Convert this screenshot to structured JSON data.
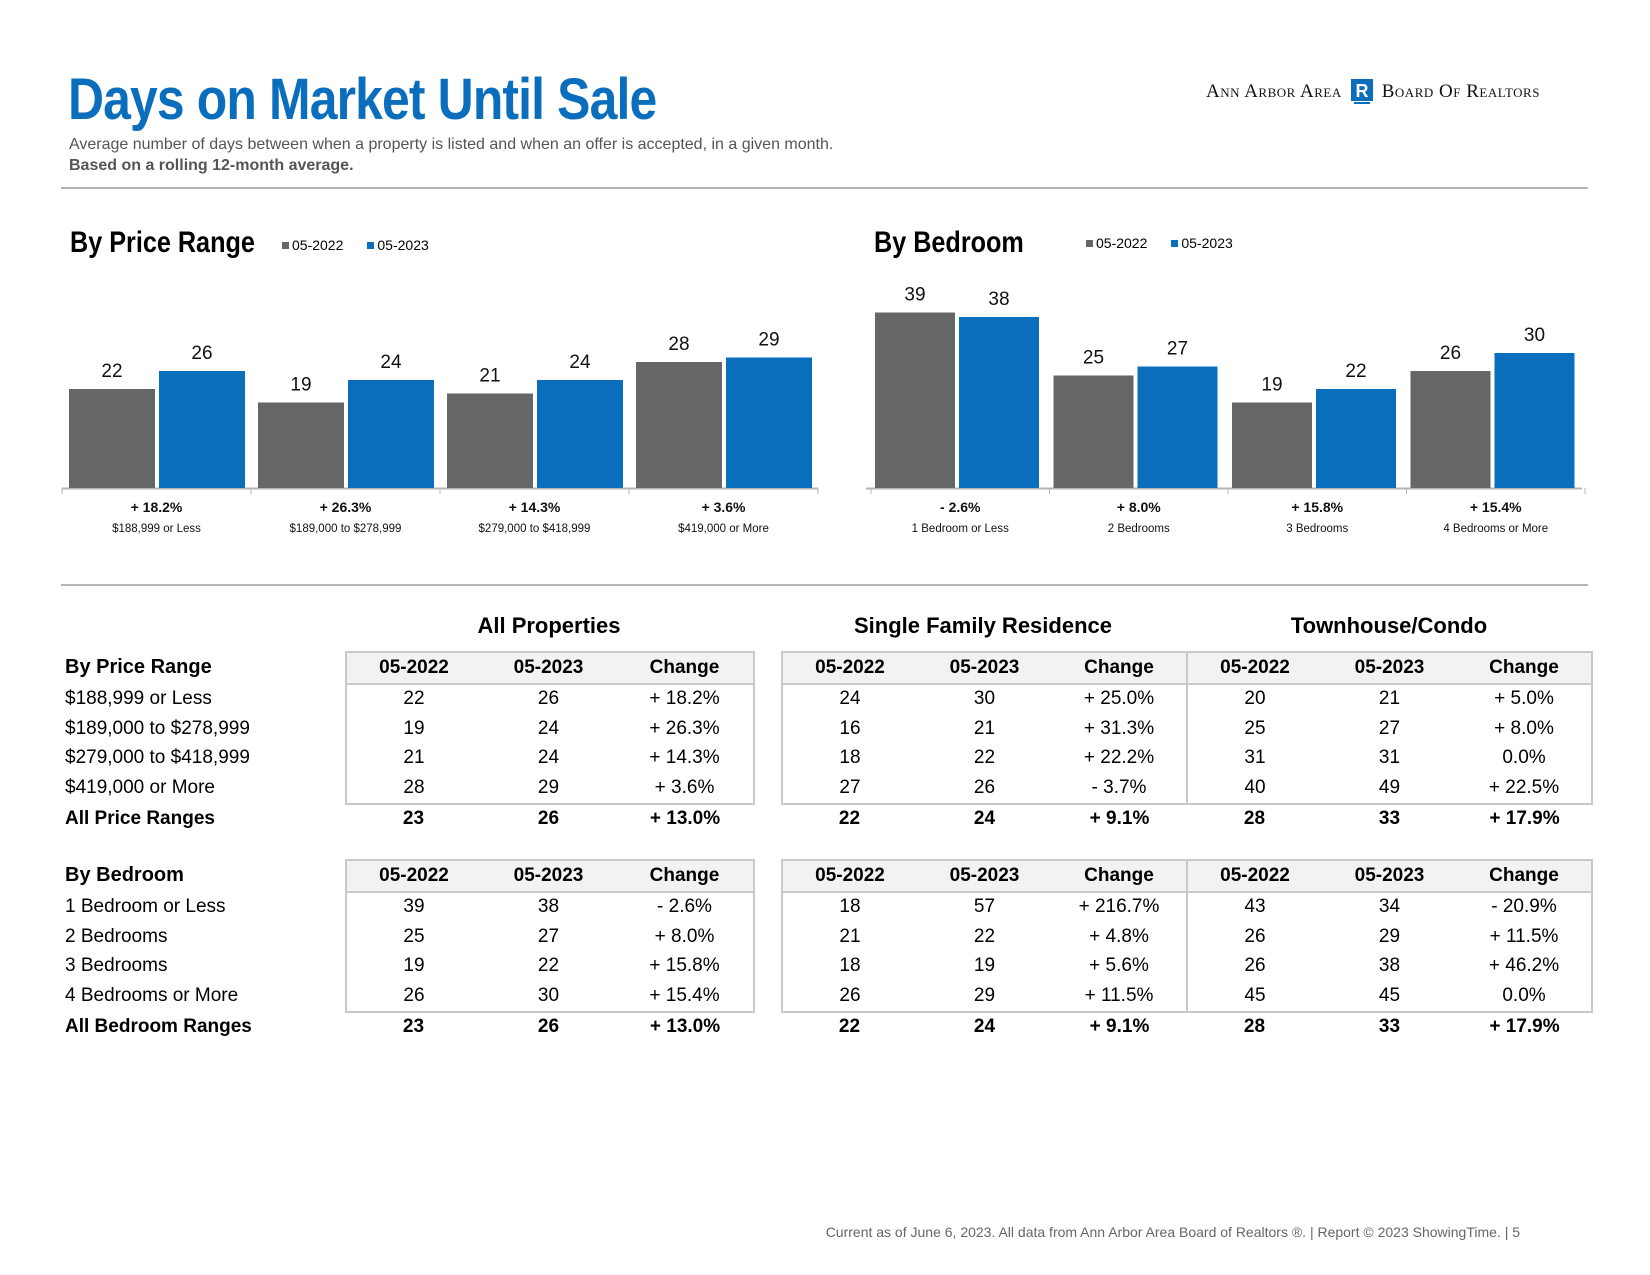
{
  "header": {
    "title": "Days on Market Until Sale",
    "subtitle": "Average number of days between when a property is listed and when an offer is accepted, in a given month.",
    "subtitle_bold": "Based on a rolling 12-month average.",
    "logo_left": "Ann Arbor Area",
    "logo_right": "Board Of Realtors",
    "logo_mark": "R"
  },
  "colors": {
    "prior": "#666666",
    "current": "#0a6ebd",
    "title": "#0a6ebd"
  },
  "chart_data": [
    {
      "type": "bar",
      "title": "By Price Range",
      "legend": [
        "05-2022",
        "05-2023"
      ],
      "categories": [
        "$188,999 or Less",
        "$189,000 to $278,999",
        "$279,000 to $418,999",
        "$419,000 or More"
      ],
      "changes": [
        "+ 18.2%",
        "+ 26.3%",
        "+ 14.3%",
        "+ 3.6%"
      ],
      "series": [
        {
          "name": "05-2022",
          "values": [
            22,
            19,
            21,
            28
          ]
        },
        {
          "name": "05-2023",
          "values": [
            26,
            24,
            24,
            29
          ]
        }
      ],
      "ylim": [
        0,
        40
      ],
      "grid": false
    },
    {
      "type": "bar",
      "title": "By Bedroom",
      "legend": [
        "05-2022",
        "05-2023"
      ],
      "categories": [
        "1 Bedroom or Less",
        "2 Bedrooms",
        "3 Bedrooms",
        "4 Bedrooms or More"
      ],
      "changes": [
        "- 2.6%",
        "+ 8.0%",
        "+ 15.8%",
        "+ 15.4%"
      ],
      "series": [
        {
          "name": "05-2022",
          "values": [
            39,
            25,
            19,
            26
          ]
        },
        {
          "name": "05-2023",
          "values": [
            38,
            27,
            22,
            30
          ]
        }
      ],
      "ylim": [
        0,
        40
      ],
      "grid": false
    }
  ],
  "tables": {
    "groups": [
      "All Properties",
      "Single Family Residence",
      "Townhouse/Condo"
    ],
    "col_labels": [
      "05-2022",
      "05-2023",
      "Change"
    ],
    "price": {
      "label": "By Price Range",
      "rows": [
        {
          "label": "$188,999 or Less",
          "cells": [
            "22",
            "26",
            "+ 18.2%",
            "24",
            "30",
            "+ 25.0%",
            "20",
            "21",
            "+ 5.0%"
          ]
        },
        {
          "label": "$189,000 to $278,999",
          "cells": [
            "19",
            "24",
            "+ 26.3%",
            "16",
            "21",
            "+ 31.3%",
            "25",
            "27",
            "+ 8.0%"
          ]
        },
        {
          "label": "$279,000 to $418,999",
          "cells": [
            "21",
            "24",
            "+ 14.3%",
            "18",
            "22",
            "+ 22.2%",
            "31",
            "31",
            "0.0%"
          ]
        },
        {
          "label": "$419,000 or More",
          "cells": [
            "28",
            "29",
            "+ 3.6%",
            "27",
            "26",
            "- 3.7%",
            "40",
            "49",
            "+ 22.5%"
          ]
        }
      ],
      "total": {
        "label": "All Price Ranges",
        "cells": [
          "23",
          "26",
          "+ 13.0%",
          "22",
          "24",
          "+ 9.1%",
          "28",
          "33",
          "+ 17.9%"
        ]
      }
    },
    "bedroom": {
      "label": "By Bedroom",
      "rows": [
        {
          "label": "1 Bedroom or Less",
          "cells": [
            "39",
            "38",
            "- 2.6%",
            "18",
            "57",
            "+ 216.7%",
            "43",
            "34",
            "- 20.9%"
          ]
        },
        {
          "label": "2 Bedrooms",
          "cells": [
            "25",
            "27",
            "+ 8.0%",
            "21",
            "22",
            "+ 4.8%",
            "26",
            "29",
            "+ 11.5%"
          ]
        },
        {
          "label": "3 Bedrooms",
          "cells": [
            "19",
            "22",
            "+ 15.8%",
            "18",
            "19",
            "+ 5.6%",
            "26",
            "38",
            "+ 46.2%"
          ]
        },
        {
          "label": "4 Bedrooms or More",
          "cells": [
            "26",
            "30",
            "+ 15.4%",
            "26",
            "29",
            "+ 11.5%",
            "45",
            "45",
            "0.0%"
          ]
        }
      ],
      "total": {
        "label": "All Bedroom Ranges",
        "cells": [
          "23",
          "26",
          "+ 13.0%",
          "22",
          "24",
          "+ 9.1%",
          "28",
          "33",
          "+ 17.9%"
        ]
      }
    }
  },
  "footer": "Current as of June 6, 2023. All data from Ann Arbor Area Board of Realtors ®. | Report © 2023 ShowingTime. | 5"
}
